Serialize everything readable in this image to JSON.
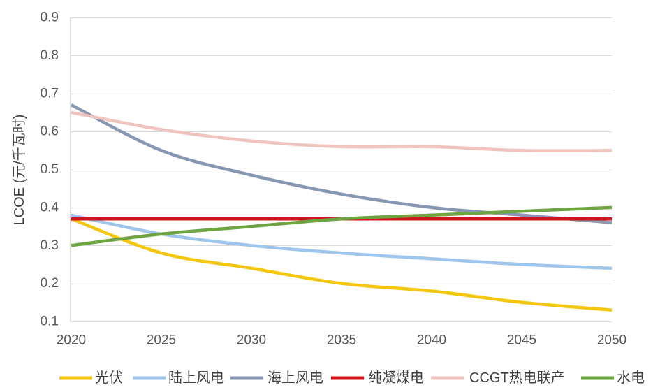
{
  "chart_data": {
    "type": "line",
    "ylabel": "LCOE (元/千瓦时)",
    "x": [
      2020,
      2025,
      2030,
      2035,
      2040,
      2045,
      2050
    ],
    "xlim": [
      2020,
      2050
    ],
    "ylim": [
      0.1,
      0.9
    ],
    "xticks": [
      2020,
      2025,
      2030,
      2035,
      2040,
      2045,
      2050
    ],
    "yticks": [
      0.1,
      0.2,
      0.3,
      0.4,
      0.5,
      0.6,
      0.7,
      0.8,
      0.9
    ],
    "grid": true,
    "legend_position": "bottom",
    "series": [
      {
        "name": "光伏",
        "color": "#f3c70f",
        "values": [
          0.37,
          0.28,
          0.24,
          0.2,
          0.18,
          0.15,
          0.13
        ]
      },
      {
        "name": "陆上风电",
        "color": "#9fc5ea",
        "values": [
          0.38,
          0.33,
          0.3,
          0.28,
          0.265,
          0.25,
          0.24
        ]
      },
      {
        "name": "海上风电",
        "color": "#8898b3",
        "values": [
          0.67,
          0.55,
          0.485,
          0.435,
          0.4,
          0.38,
          0.36
        ]
      },
      {
        "name": "纯凝煤电",
        "color": "#d3141c",
        "values": [
          0.37,
          0.37,
          0.37,
          0.37,
          0.37,
          0.37,
          0.37
        ]
      },
      {
        "name": "CCGT热电联产",
        "color": "#efc4bf",
        "values": [
          0.65,
          0.605,
          0.575,
          0.56,
          0.56,
          0.55,
          0.55
        ]
      },
      {
        "name": "水电",
        "color": "#6da543",
        "values": [
          0.3,
          0.33,
          0.35,
          0.37,
          0.38,
          0.39,
          0.4
        ]
      }
    ]
  }
}
